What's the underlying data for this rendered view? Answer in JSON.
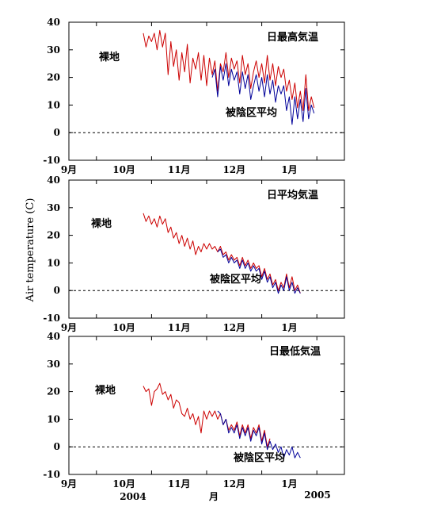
{
  "colors": {
    "bare": "#cc0000",
    "shaded": "#000099",
    "axis": "#000000"
  },
  "figure": {
    "ylabel": "Air temperature (C)",
    "bottom_year_left": "2004",
    "bottom_month": "月",
    "bottom_year_right": "2005"
  },
  "chart_data": [
    {
      "type": "line",
      "title": "日最高気温",
      "annotations": [
        "裸地",
        "被陰区平均"
      ],
      "xticks": [
        "9月",
        "10月",
        "11月",
        "12月",
        "1月"
      ],
      "yticks": [
        "40",
        "30",
        "20",
        "10",
        "0",
        "-10"
      ],
      "ylim": [
        -10,
        40
      ],
      "grid": false,
      "reference_line": 0,
      "series": [
        {
          "name": "裸地",
          "values": [
            [
              9.85,
              36
            ],
            [
              9.9,
              31
            ],
            [
              9.95,
              35
            ],
            [
              10.0,
              33
            ],
            [
              10.05,
              36
            ],
            [
              10.1,
              30
            ],
            [
              10.15,
              37
            ],
            [
              10.2,
              31
            ],
            [
              10.25,
              36
            ],
            [
              10.3,
              21
            ],
            [
              10.35,
              33
            ],
            [
              10.4,
              24
            ],
            [
              10.45,
              30
            ],
            [
              10.5,
              19
            ],
            [
              10.55,
              29
            ],
            [
              10.6,
              22
            ],
            [
              10.65,
              32
            ],
            [
              10.7,
              18
            ],
            [
              10.75,
              27
            ],
            [
              10.8,
              23
            ],
            [
              10.85,
              29
            ],
            [
              10.9,
              19
            ],
            [
              10.95,
              28
            ],
            [
              11.0,
              17
            ],
            [
              11.05,
              27
            ],
            [
              11.1,
              21
            ],
            [
              11.15,
              26
            ],
            [
              11.2,
              15
            ],
            [
              11.25,
              25
            ],
            [
              11.3,
              22
            ],
            [
              11.35,
              29
            ],
            [
              11.4,
              20
            ],
            [
              11.45,
              27
            ],
            [
              11.5,
              23
            ],
            [
              11.55,
              26
            ],
            [
              11.6,
              18
            ],
            [
              11.65,
              28
            ],
            [
              11.7,
              21
            ],
            [
              11.75,
              25
            ],
            [
              11.8,
              16
            ],
            [
              11.85,
              22
            ],
            [
              11.9,
              26
            ],
            [
              11.95,
              20
            ],
            [
              12.0,
              25
            ],
            [
              12.05,
              18
            ],
            [
              12.1,
              28
            ],
            [
              12.15,
              19
            ],
            [
              12.2,
              25
            ],
            [
              12.25,
              17
            ],
            [
              12.3,
              24
            ],
            [
              12.35,
              20
            ],
            [
              12.4,
              23
            ],
            [
              12.45,
              15
            ],
            [
              12.5,
              19
            ],
            [
              12.55,
              12
            ],
            [
              12.6,
              18
            ],
            [
              12.65,
              9
            ],
            [
              12.7,
              15
            ],
            [
              12.75,
              8
            ],
            [
              12.8,
              21
            ],
            [
              12.85,
              8
            ],
            [
              12.9,
              13
            ],
            [
              12.95,
              9
            ]
          ]
        },
        {
          "name": "被陰区平均",
          "values": [
            [
              11.1,
              20
            ],
            [
              11.15,
              23
            ],
            [
              11.2,
              13
            ],
            [
              11.25,
              24
            ],
            [
              11.3,
              19
            ],
            [
              11.35,
              25
            ],
            [
              11.4,
              17
            ],
            [
              11.45,
              23
            ],
            [
              11.5,
              19
            ],
            [
              11.55,
              22
            ],
            [
              11.6,
              14
            ],
            [
              11.65,
              22
            ],
            [
              11.7,
              16
            ],
            [
              11.75,
              21
            ],
            [
              11.8,
              12
            ],
            [
              11.85,
              17
            ],
            [
              11.9,
              21
            ],
            [
              11.95,
              15
            ],
            [
              12.0,
              20
            ],
            [
              12.05,
              13
            ],
            [
              12.1,
              21
            ],
            [
              12.15,
              14
            ],
            [
              12.2,
              19
            ],
            [
              12.25,
              11
            ],
            [
              12.3,
              17
            ],
            [
              12.35,
              14
            ],
            [
              12.4,
              17
            ],
            [
              12.45,
              8
            ],
            [
              12.5,
              13
            ],
            [
              12.55,
              3
            ],
            [
              12.6,
              13
            ],
            [
              12.65,
              5
            ],
            [
              12.7,
              12
            ],
            [
              12.75,
              4
            ],
            [
              12.8,
              16
            ],
            [
              12.85,
              5
            ],
            [
              12.9,
              10
            ],
            [
              12.95,
              7
            ]
          ]
        }
      ]
    },
    {
      "type": "line",
      "title": "日平均気温",
      "annotations": [
        "裸地",
        "被陰区平均"
      ],
      "xticks": [
        "9月",
        "10月",
        "11月",
        "12月",
        "1月"
      ],
      "yticks": [
        "40",
        "30",
        "20",
        "10",
        "0",
        "-10"
      ],
      "ylim": [
        -10,
        40
      ],
      "grid": false,
      "reference_line": 0,
      "series": [
        {
          "name": "裸地",
          "values": [
            [
              9.85,
              28
            ],
            [
              9.9,
              25
            ],
            [
              9.95,
              27
            ],
            [
              10.0,
              24
            ],
            [
              10.05,
              26
            ],
            [
              10.1,
              23
            ],
            [
              10.15,
              27
            ],
            [
              10.2,
              24
            ],
            [
              10.25,
              26
            ],
            [
              10.3,
              21
            ],
            [
              10.35,
              23
            ],
            [
              10.4,
              19
            ],
            [
              10.45,
              21
            ],
            [
              10.5,
              17
            ],
            [
              10.55,
              20
            ],
            [
              10.6,
              16
            ],
            [
              10.65,
              19
            ],
            [
              10.7,
              15
            ],
            [
              10.75,
              18
            ],
            [
              10.8,
              13
            ],
            [
              10.85,
              16
            ],
            [
              10.9,
              14
            ],
            [
              10.95,
              17
            ],
            [
              11.0,
              15
            ],
            [
              11.05,
              17
            ],
            [
              11.1,
              15
            ],
            [
              11.15,
              16
            ],
            [
              11.2,
              14
            ],
            [
              11.25,
              16
            ],
            [
              11.3,
              13
            ],
            [
              11.35,
              14
            ],
            [
              11.4,
              11
            ],
            [
              11.45,
              13
            ],
            [
              11.5,
              11
            ],
            [
              11.55,
              12
            ],
            [
              11.6,
              9
            ],
            [
              11.65,
              12
            ],
            [
              11.7,
              9
            ],
            [
              11.75,
              11
            ],
            [
              11.8,
              8
            ],
            [
              11.85,
              10
            ],
            [
              11.9,
              8
            ],
            [
              11.95,
              9
            ],
            [
              12.0,
              5
            ],
            [
              12.05,
              8
            ],
            [
              12.1,
              4
            ],
            [
              12.15,
              6
            ],
            [
              12.2,
              2
            ],
            [
              12.25,
              4
            ],
            [
              12.3,
              0
            ],
            [
              12.35,
              3
            ],
            [
              12.4,
              1
            ],
            [
              12.45,
              6
            ],
            [
              12.5,
              1
            ],
            [
              12.55,
              5
            ],
            [
              12.6,
              0
            ],
            [
              12.65,
              2
            ],
            [
              12.7,
              -1
            ]
          ]
        },
        {
          "name": "被陰区平均",
          "values": [
            [
              11.2,
              14
            ],
            [
              11.25,
              15
            ],
            [
              11.3,
              12
            ],
            [
              11.35,
              13
            ],
            [
              11.4,
              10
            ],
            [
              11.45,
              12
            ],
            [
              11.5,
              10
            ],
            [
              11.55,
              11
            ],
            [
              11.6,
              8
            ],
            [
              11.65,
              11
            ],
            [
              11.7,
              8
            ],
            [
              11.75,
              10
            ],
            [
              11.8,
              7
            ],
            [
              11.85,
              9
            ],
            [
              11.9,
              7
            ],
            [
              11.95,
              8
            ],
            [
              12.0,
              4
            ],
            [
              12.05,
              7
            ],
            [
              12.1,
              3
            ],
            [
              12.15,
              5
            ],
            [
              12.2,
              1
            ],
            [
              12.25,
              3
            ],
            [
              12.3,
              -1
            ],
            [
              12.35,
              2
            ],
            [
              12.4,
              0
            ],
            [
              12.45,
              5
            ],
            [
              12.5,
              0
            ],
            [
              12.55,
              3
            ],
            [
              12.6,
              -1
            ],
            [
              12.65,
              1
            ],
            [
              12.7,
              -1
            ]
          ]
        }
      ]
    },
    {
      "type": "line",
      "title": "日最低気温",
      "annotations": [
        "裸地",
        "被陰区平均"
      ],
      "xticks": [
        "9月",
        "10月",
        "11月",
        "12月",
        "1月"
      ],
      "yticks": [
        "40",
        "30",
        "20",
        "10",
        "0",
        "-10"
      ],
      "ylim": [
        -10,
        40
      ],
      "grid": false,
      "reference_line": 0,
      "series": [
        {
          "name": "裸地",
          "values": [
            [
              9.85,
              22
            ],
            [
              9.9,
              20
            ],
            [
              9.95,
              21
            ],
            [
              10.0,
              15
            ],
            [
              10.05,
              20
            ],
            [
              10.1,
              21
            ],
            [
              10.15,
              23
            ],
            [
              10.2,
              19
            ],
            [
              10.25,
              20
            ],
            [
              10.3,
              17
            ],
            [
              10.35,
              19
            ],
            [
              10.4,
              14
            ],
            [
              10.45,
              17
            ],
            [
              10.5,
              16
            ],
            [
              10.55,
              12
            ],
            [
              10.6,
              11
            ],
            [
              10.65,
              14
            ],
            [
              10.7,
              10
            ],
            [
              10.75,
              12
            ],
            [
              10.8,
              8
            ],
            [
              10.85,
              11
            ],
            [
              10.9,
              5
            ],
            [
              10.95,
              13
            ],
            [
              11.0,
              10
            ],
            [
              11.05,
              13
            ],
            [
              11.1,
              11
            ],
            [
              11.15,
              13
            ],
            [
              11.2,
              10
            ],
            [
              11.25,
              12
            ],
            [
              11.3,
              8
            ],
            [
              11.35,
              10
            ],
            [
              11.4,
              6
            ],
            [
              11.45,
              8
            ],
            [
              11.5,
              6
            ],
            [
              11.55,
              9
            ],
            [
              11.6,
              4
            ],
            [
              11.65,
              8
            ],
            [
              11.7,
              5
            ],
            [
              11.75,
              8
            ],
            [
              11.8,
              3
            ],
            [
              11.85,
              7
            ],
            [
              11.9,
              5
            ],
            [
              11.95,
              8
            ],
            [
              12.0,
              2
            ],
            [
              12.05,
              6
            ],
            [
              12.1,
              0
            ],
            [
              12.15,
              3
            ]
          ]
        },
        {
          "name": "被陰区平均",
          "values": [
            [
              11.2,
              13
            ],
            [
              11.25,
              12
            ],
            [
              11.3,
              8
            ],
            [
              11.35,
              10
            ],
            [
              11.4,
              5
            ],
            [
              11.45,
              7
            ],
            [
              11.5,
              5
            ],
            [
              11.55,
              8
            ],
            [
              11.6,
              3
            ],
            [
              11.65,
              7
            ],
            [
              11.7,
              4
            ],
            [
              11.75,
              7
            ],
            [
              11.8,
              2
            ],
            [
              11.85,
              6
            ],
            [
              11.9,
              4
            ],
            [
              11.95,
              7
            ],
            [
              12.0,
              1
            ],
            [
              12.05,
              5
            ],
            [
              12.1,
              -1
            ],
            [
              12.15,
              2
            ],
            [
              12.2,
              -1
            ],
            [
              12.25,
              1
            ],
            [
              12.3,
              -2
            ],
            [
              12.35,
              0
            ],
            [
              12.4,
              -4
            ],
            [
              12.45,
              -1
            ],
            [
              12.5,
              -3
            ],
            [
              12.55,
              0
            ],
            [
              12.6,
              -4
            ],
            [
              12.65,
              -2
            ],
            [
              12.7,
              -4
            ]
          ]
        }
      ]
    }
  ]
}
